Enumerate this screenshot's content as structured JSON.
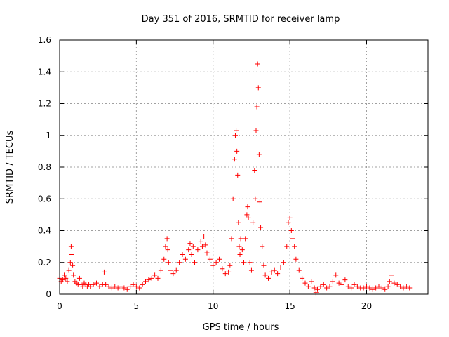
{
  "chart_data": {
    "type": "scatter",
    "title": "Day 351 of 2016, SRMTID for receiver lamp",
    "xlabel": "GPS time / hours",
    "ylabel": "SRMTID / TECUs",
    "xlim": [
      0,
      24
    ],
    "ylim": [
      0,
      1.6
    ],
    "grid": true,
    "marker": "+",
    "color": "#ff0000",
    "x_ticks": [
      0,
      5,
      10,
      15,
      20
    ],
    "x_tick_labels": [
      "0",
      "5",
      "10",
      "15",
      "20"
    ],
    "y_ticks": [
      0,
      0.2,
      0.4,
      0.6,
      0.8,
      1.0,
      1.2,
      1.4,
      1.6
    ],
    "y_tick_labels": [
      "0",
      "0.2",
      "0.4",
      "0.6",
      "0.8",
      "1",
      "1.2",
      "1.4",
      "1.6"
    ],
    "series": [
      {
        "name": "SRMTID",
        "x": [
          0.0,
          0.1,
          0.2,
          0.3,
          0.4,
          0.5,
          0.6,
          0.7,
          0.75,
          0.8,
          0.85,
          0.9,
          1.0,
          1.1,
          1.2,
          1.3,
          1.4,
          1.5,
          1.6,
          1.7,
          1.8,
          1.9,
          2.0,
          2.2,
          2.4,
          2.6,
          2.8,
          2.9,
          3.0,
          3.2,
          3.4,
          3.6,
          3.8,
          4.0,
          4.2,
          4.4,
          4.6,
          4.8,
          5.0,
          5.2,
          5.4,
          5.6,
          5.8,
          6.0,
          6.2,
          6.4,
          6.6,
          6.8,
          6.9,
          7.0,
          7.05,
          7.1,
          7.2,
          7.4,
          7.6,
          7.8,
          8.0,
          8.2,
          8.4,
          8.5,
          8.6,
          8.7,
          8.8,
          9.0,
          9.2,
          9.3,
          9.4,
          9.5,
          9.6,
          9.8,
          10.0,
          10.2,
          10.4,
          10.6,
          10.8,
          11.0,
          11.1,
          11.2,
          11.3,
          11.4,
          11.45,
          11.5,
          11.55,
          11.6,
          11.65,
          11.7,
          11.75,
          11.8,
          11.9,
          12.0,
          12.1,
          12.2,
          12.25,
          12.3,
          12.4,
          12.5,
          12.6,
          12.7,
          12.75,
          12.8,
          12.85,
          12.9,
          12.95,
          13.0,
          13.05,
          13.1,
          13.2,
          13.3,
          13.4,
          13.6,
          13.8,
          14.0,
          14.2,
          14.4,
          14.6,
          14.8,
          14.9,
          15.0,
          15.1,
          15.2,
          15.3,
          15.4,
          15.6,
          15.8,
          16.0,
          16.2,
          16.4,
          16.6,
          16.7,
          16.8,
          17.0,
          17.2,
          17.4,
          17.6,
          17.8,
          18.0,
          18.2,
          18.4,
          18.6,
          18.8,
          19.0,
          19.2,
          19.4,
          19.6,
          19.8,
          20.0,
          20.2,
          20.4,
          20.6,
          20.8,
          21.0,
          21.2,
          21.4,
          21.5,
          21.6,
          21.8,
          22.0,
          22.2,
          22.4,
          22.6,
          22.8
        ],
        "y": [
          0.1,
          0.08,
          0.09,
          0.12,
          0.1,
          0.08,
          0.15,
          0.2,
          0.3,
          0.25,
          0.18,
          0.12,
          0.08,
          0.07,
          0.06,
          0.1,
          0.06,
          0.05,
          0.07,
          0.06,
          0.05,
          0.06,
          0.05,
          0.06,
          0.07,
          0.05,
          0.06,
          0.14,
          0.06,
          0.05,
          0.04,
          0.05,
          0.04,
          0.05,
          0.04,
          0.03,
          0.05,
          0.06,
          0.05,
          0.04,
          0.06,
          0.08,
          0.09,
          0.1,
          0.12,
          0.1,
          0.15,
          0.22,
          0.3,
          0.35,
          0.28,
          0.2,
          0.15,
          0.13,
          0.15,
          0.2,
          0.25,
          0.22,
          0.28,
          0.32,
          0.25,
          0.3,
          0.2,
          0.28,
          0.33,
          0.3,
          0.36,
          0.31,
          0.26,
          0.22,
          0.18,
          0.2,
          0.22,
          0.16,
          0.13,
          0.14,
          0.18,
          0.35,
          0.6,
          0.85,
          1.0,
          1.03,
          0.9,
          0.75,
          0.45,
          0.3,
          0.25,
          0.35,
          0.28,
          0.2,
          0.35,
          0.5,
          0.55,
          0.48,
          0.2,
          0.15,
          0.45,
          0.78,
          0.6,
          1.03,
          1.18,
          1.45,
          1.3,
          0.88,
          0.58,
          0.42,
          0.3,
          0.18,
          0.12,
          0.1,
          0.14,
          0.15,
          0.13,
          0.17,
          0.2,
          0.3,
          0.45,
          0.48,
          0.4,
          0.35,
          0.3,
          0.22,
          0.15,
          0.1,
          0.07,
          0.05,
          0.08,
          0.04,
          0.01,
          0.03,
          0.05,
          0.06,
          0.04,
          0.05,
          0.08,
          0.12,
          0.07,
          0.06,
          0.09,
          0.05,
          0.04,
          0.06,
          0.05,
          0.04,
          0.04,
          0.05,
          0.04,
          0.03,
          0.04,
          0.05,
          0.04,
          0.03,
          0.05,
          0.08,
          0.12,
          0.07,
          0.06,
          0.05,
          0.04,
          0.05,
          0.04
        ]
      }
    ]
  }
}
